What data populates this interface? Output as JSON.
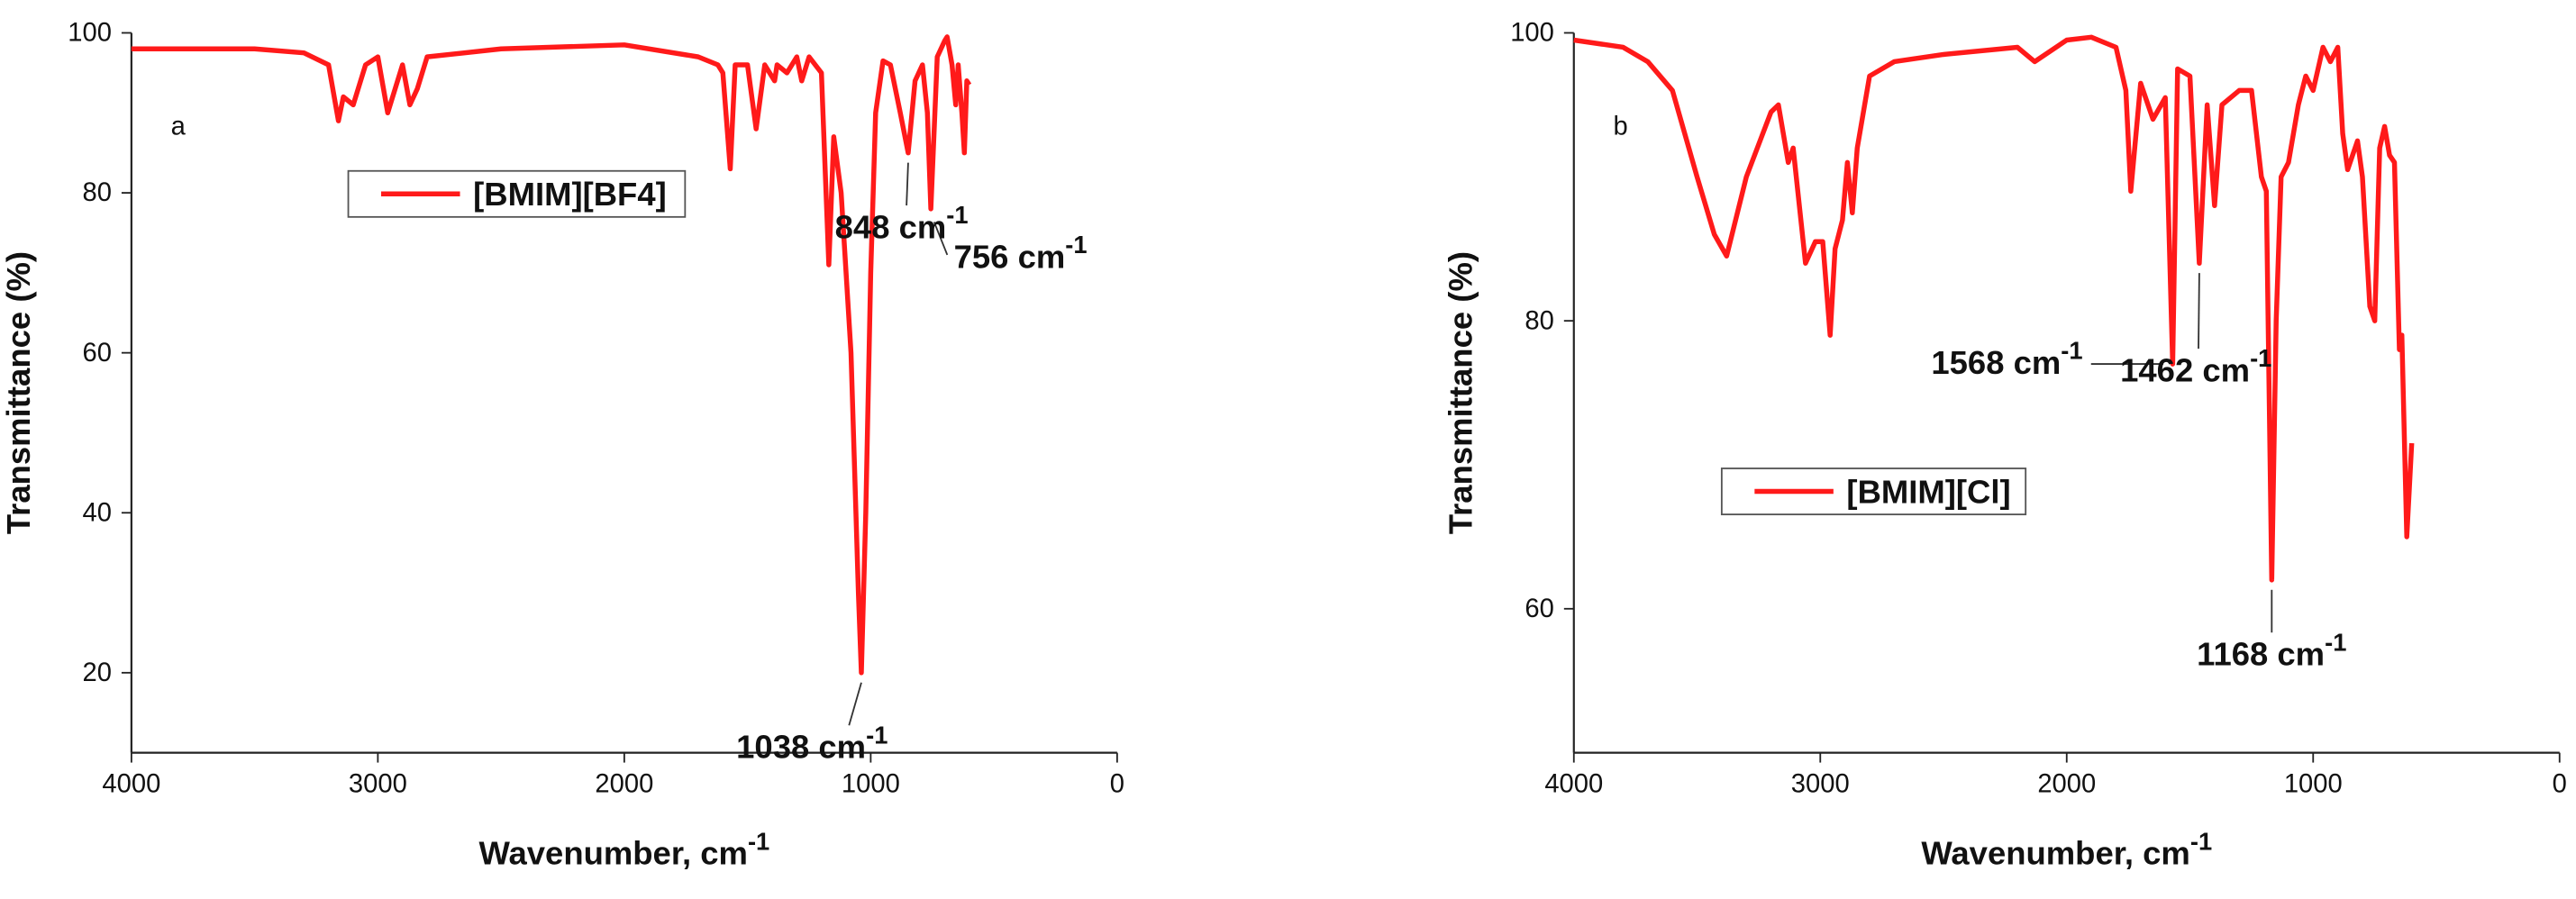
{
  "chart_data": [
    {
      "type": "line",
      "panel": "a",
      "x_label": "Wavenumber, cm",
      "x_label_sup": "-1",
      "y_label": "Transmittance (%)",
      "xlim": [
        4000,
        0
      ],
      "xticks": [
        4000,
        3000,
        2000,
        1000,
        0
      ],
      "ylim": [
        10,
        100
      ],
      "yticks": [
        20,
        40,
        60,
        80,
        100
      ],
      "legend": "upper center",
      "x": [
        4000,
        3500,
        3300,
        3200,
        3160,
        3140,
        3100,
        3050,
        3000,
        2960,
        2930,
        2900,
        2870,
        2840,
        2800,
        2500,
        2000,
        1700,
        1620,
        1600,
        1570,
        1550,
        1500,
        1465,
        1430,
        1390,
        1380,
        1340,
        1300,
        1280,
        1250,
        1200,
        1170,
        1150,
        1120,
        1080,
        1050,
        1038,
        1020,
        1000,
        980,
        950,
        920,
        880,
        848,
        820,
        790,
        770,
        756,
        730,
        700,
        690,
        670,
        655,
        645,
        630,
        620,
        610,
        600
      ],
      "series": [
        {
          "name": "[BMIM][BF4]",
          "color": "#ff1a1a",
          "values": [
            98,
            98,
            97.5,
            96,
            89,
            92,
            91,
            96,
            97,
            90,
            93,
            96,
            91,
            93,
            97,
            98,
            98.5,
            97,
            96,
            95,
            83,
            96,
            96,
            88,
            96,
            94,
            96,
            95,
            97,
            94,
            97,
            95,
            71,
            87,
            80,
            60,
            30,
            20,
            40,
            70,
            90,
            96.5,
            96,
            90,
            85,
            94,
            96,
            90,
            78,
            97,
            99,
            99.5,
            96,
            91,
            96,
            90,
            85,
            94,
            93.5
          ]
        }
      ],
      "annotations": [
        {
          "text": "756 cm",
          "sup": "-1",
          "x": 756,
          "y": 78
        },
        {
          "text": "848 cm",
          "sup": "-1",
          "x": 848,
          "y": 85
        },
        {
          "text": "1038 cm",
          "sup": "-1",
          "x": 1038,
          "y": 20
        }
      ]
    },
    {
      "type": "line",
      "panel": "b",
      "x_label": "Wavenumber, cm",
      "x_label_sup": "-1",
      "y_label": "Transmittance (%)",
      "xlim": [
        4000,
        0
      ],
      "xticks": [
        4000,
        3000,
        2000,
        1000,
        0
      ],
      "ylim": [
        50,
        100
      ],
      "yticks": [
        60,
        80,
        100
      ],
      "legend": "center left",
      "x": [
        4000,
        3800,
        3700,
        3600,
        3500,
        3430,
        3380,
        3300,
        3200,
        3170,
        3130,
        3110,
        3060,
        3020,
        2990,
        2960,
        2940,
        2910,
        2890,
        2870,
        2850,
        2800,
        2700,
        2500,
        2200,
        2130,
        2000,
        1900,
        1800,
        1760,
        1740,
        1700,
        1650,
        1600,
        1570,
        1550,
        1500,
        1462,
        1430,
        1400,
        1370,
        1300,
        1250,
        1210,
        1190,
        1168,
        1150,
        1130,
        1100,
        1060,
        1030,
        1000,
        960,
        930,
        900,
        880,
        860,
        820,
        800,
        770,
        750,
        730,
        710,
        690,
        670,
        650,
        640,
        620,
        600
      ],
      "series": [
        {
          "name": "[BMIM][Cl]",
          "color": "#ff1a1a",
          "values": [
            99.5,
            99,
            98,
            96,
            90,
            86,
            84.5,
            90,
            94.5,
            95,
            91,
            92,
            84,
            85.5,
            85.5,
            79,
            85,
            87,
            91,
            87.5,
            92,
            97,
            98,
            98.5,
            99,
            98,
            99.5,
            99.7,
            99,
            96,
            89,
            96.5,
            94,
            95.5,
            77,
            97.5,
            97,
            84,
            95,
            88,
            95,
            96,
            96,
            90,
            89,
            62,
            80,
            90,
            91,
            95,
            97,
            96,
            99,
            98,
            99,
            93,
            90.5,
            92.5,
            90,
            81,
            80,
            92,
            93.5,
            91.5,
            91,
            78,
            79,
            65,
            71.5
          ]
        }
      ],
      "annotations": [
        {
          "text": "1568 cm",
          "sup": "-1",
          "x": 1568,
          "y": 77
        },
        {
          "text": "1462 cm",
          "sup": "-1",
          "x": 1462,
          "y": 84
        },
        {
          "text": "1168 cm",
          "sup": "-1",
          "x": 1168,
          "y": 62
        }
      ]
    }
  ]
}
